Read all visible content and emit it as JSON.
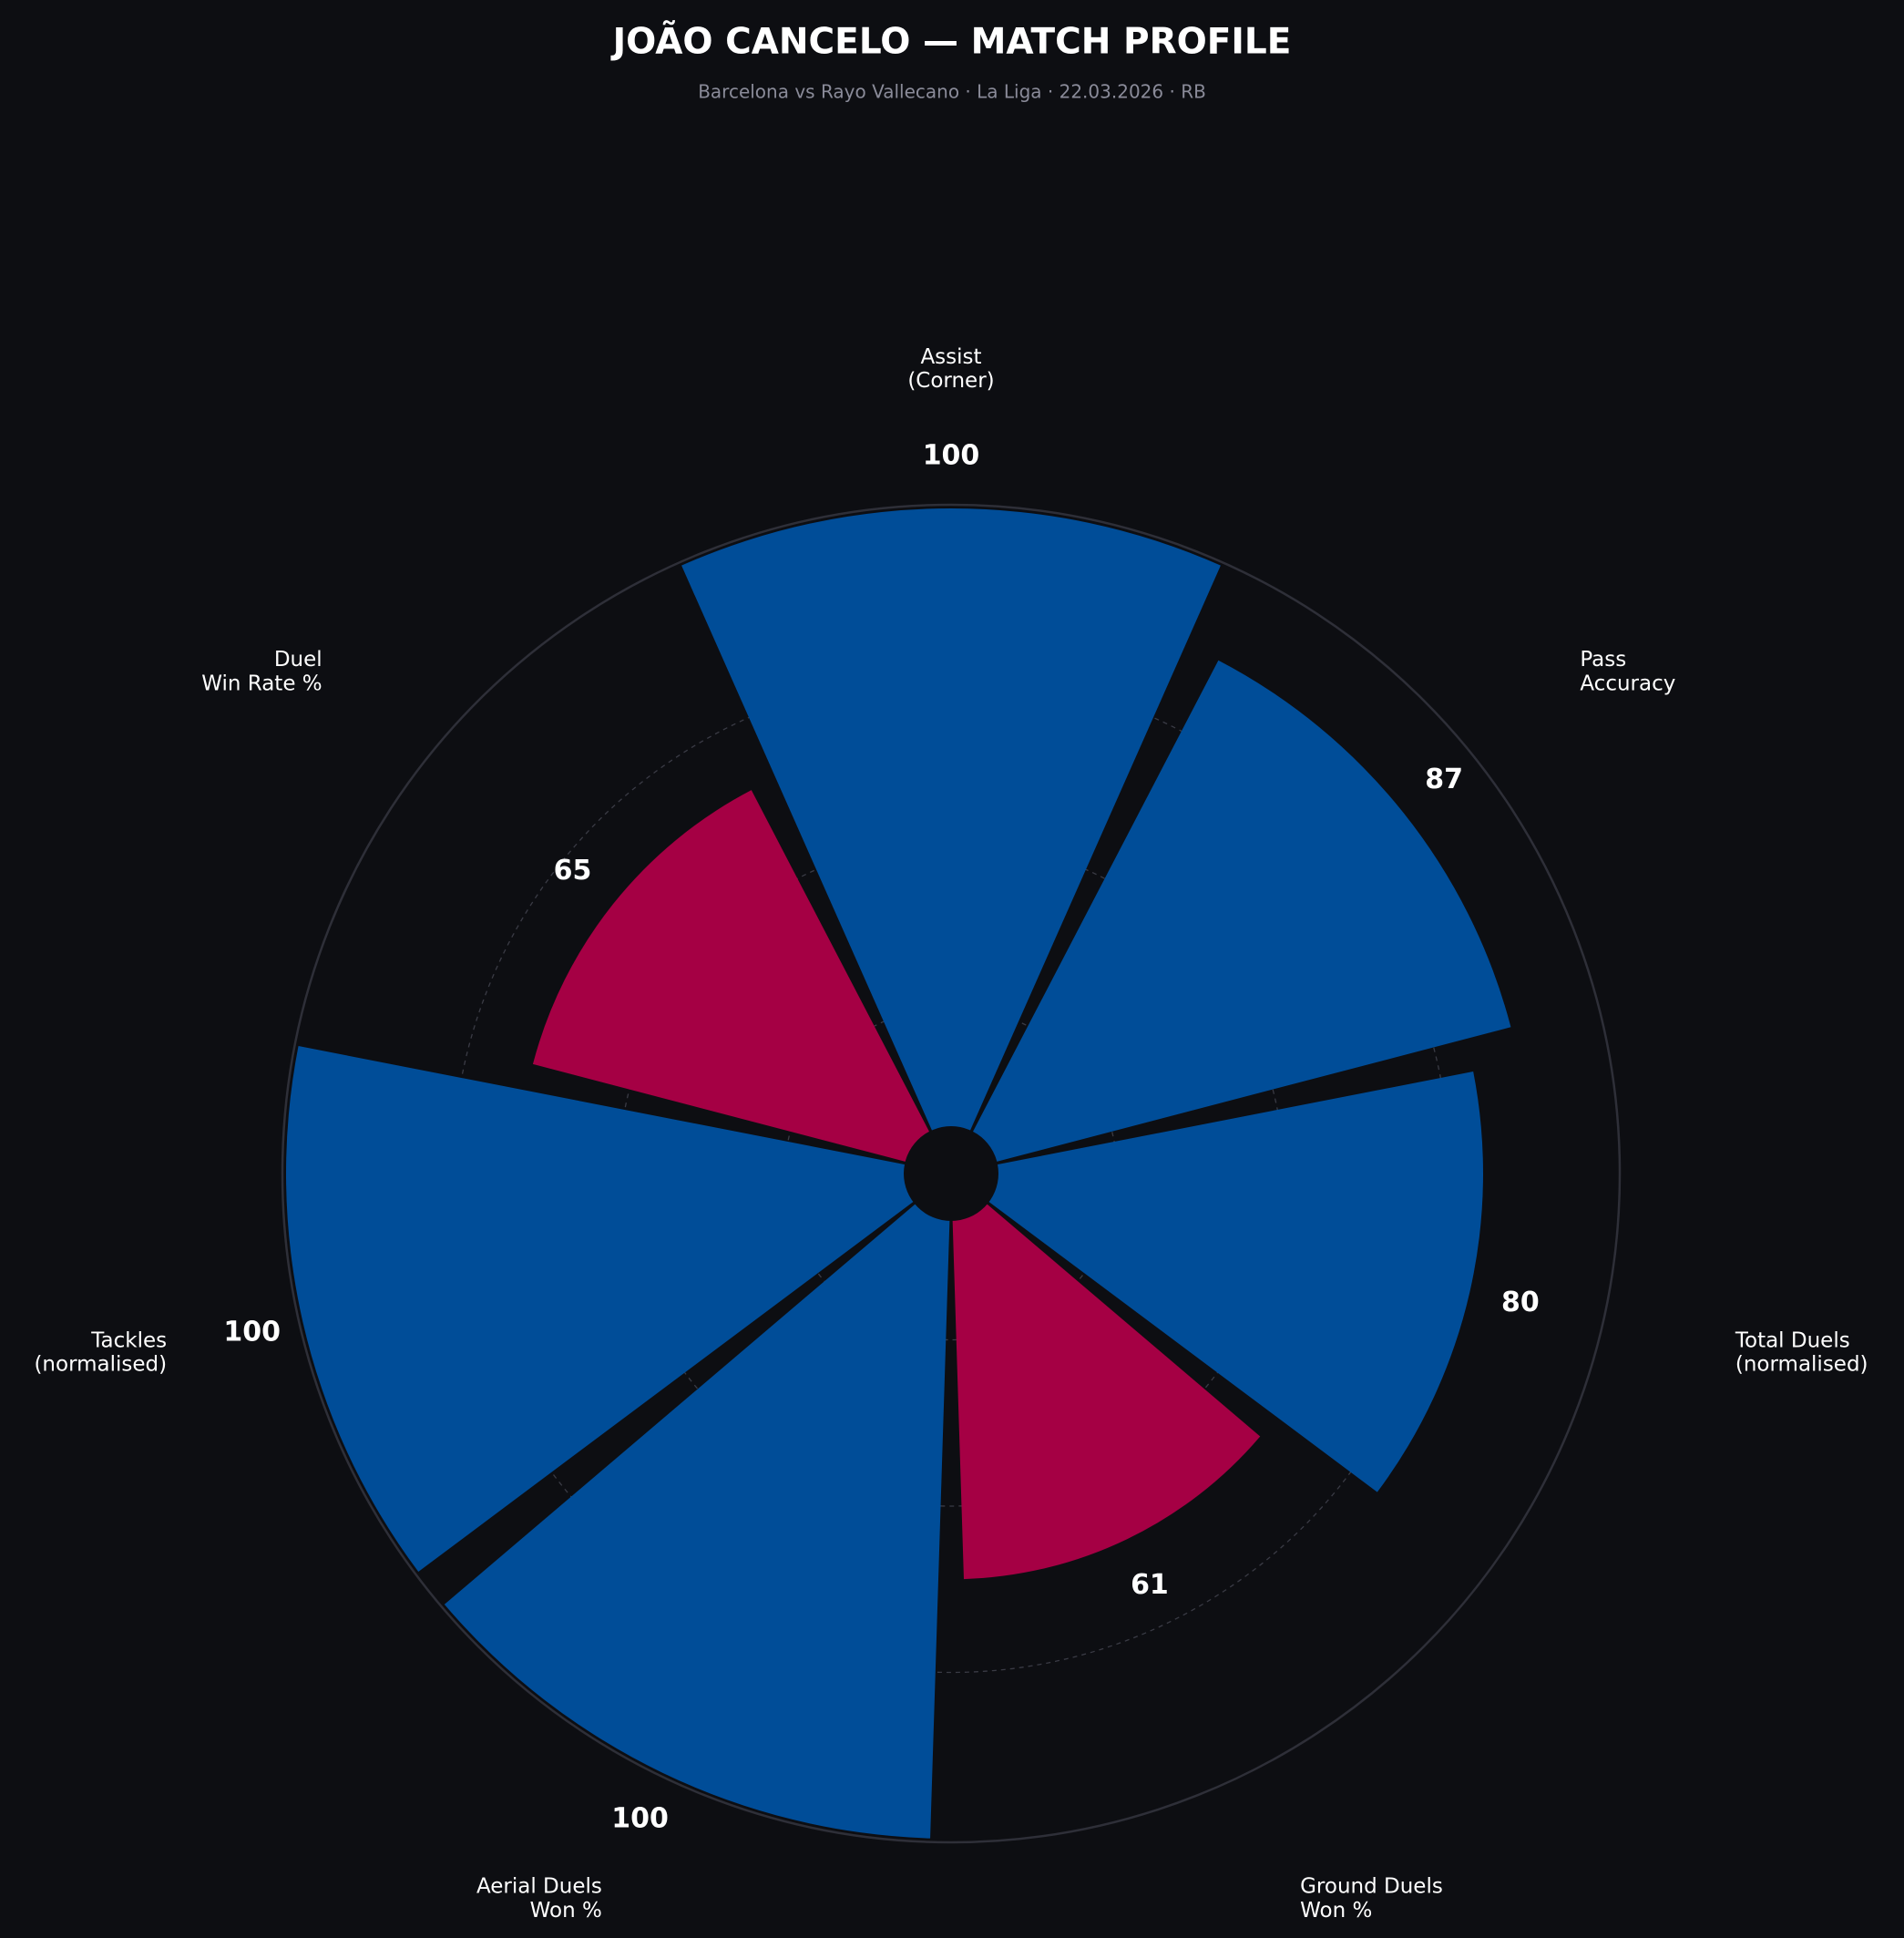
{
  "chart_data": {
    "type": "polar-bar",
    "title": "JOÃO CANCELO — MATCH PROFILE",
    "subtitle": "Barcelona vs Rayo Vallecano  ·  La Liga  ·  22.03.2026  ·  RB",
    "categories": [
      "Assist\n(Corner)",
      "Pass\nAccuracy",
      "Total Duels\n(normalised)",
      "Ground Duels\nWon %",
      "Aerial Duels\nWon %",
      "Tackles\n(normalised)",
      "Duel\nWin Rate %"
    ],
    "values": [
      100,
      87,
      80,
      61,
      100,
      100,
      65
    ],
    "colors": [
      "#004d98",
      "#004d98",
      "#004d98",
      "#a50044",
      "#004d98",
      "#004d98",
      "#a50044"
    ],
    "ylim": [
      0,
      100
    ],
    "yticks": [
      25,
      50,
      75
    ],
    "grid": true
  }
}
